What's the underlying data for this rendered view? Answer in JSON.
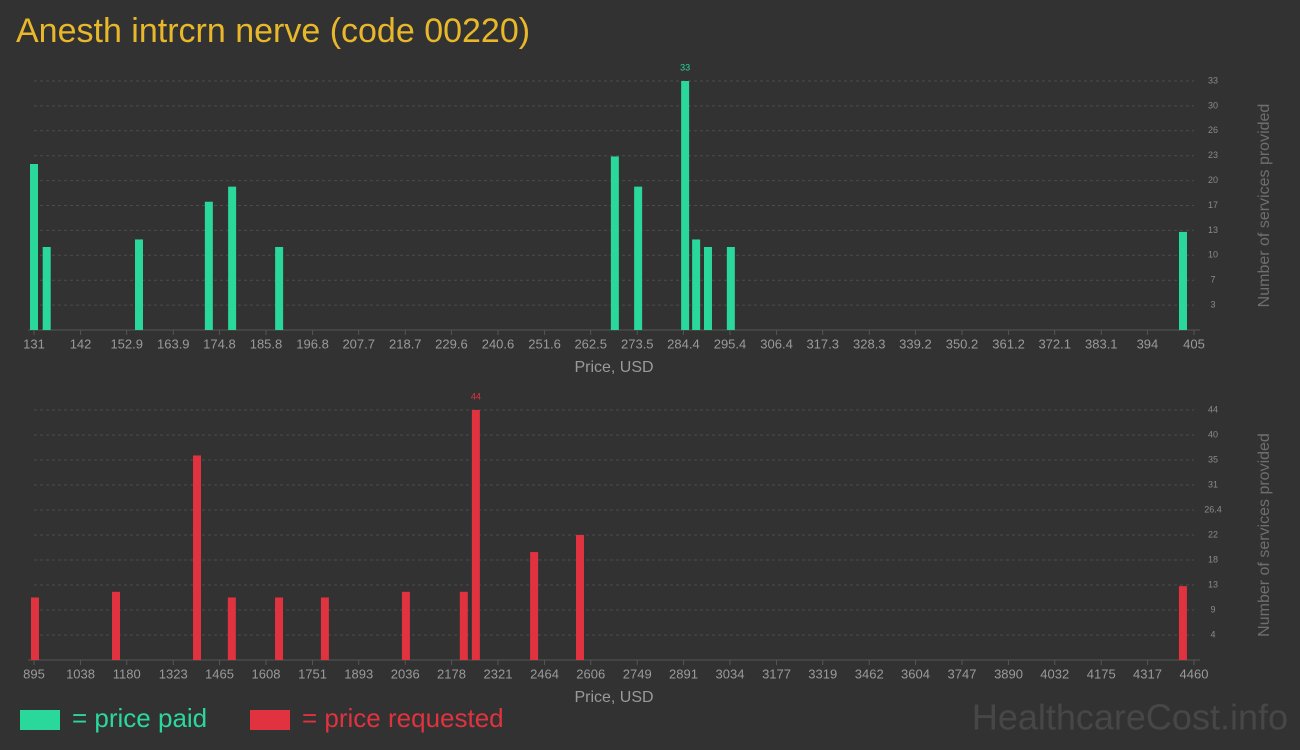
{
  "title": "Anesth intrcrn nerve (code 00220)",
  "watermark": "HealthcareCost.info",
  "chart_data": [
    {
      "type": "bar",
      "xlabel": "Price, USD",
      "ylabel": "Number of services provided",
      "x": [
        131,
        134,
        155.8,
        172.3,
        177.8,
        188.9,
        268.2,
        273.7,
        284.8,
        287.4,
        290.2,
        295.6,
        402.4
      ],
      "series": [
        {
          "name": "= price paid",
          "color": "#2ad89c",
          "values": [
            22,
            11,
            12,
            17,
            19,
            11,
            23,
            19,
            33,
            12,
            11,
            11,
            13
          ]
        }
      ],
      "xlim": [
        131,
        405
      ],
      "xticks": [
        131,
        142,
        152.9,
        163.9,
        174.8,
        185.8,
        196.8,
        207.7,
        218.7,
        229.6,
        240.6,
        251.6,
        262.5,
        273.5,
        284.4,
        295.4,
        306.4,
        317.3,
        328.3,
        339.2,
        350.2,
        361.2,
        372.1,
        383.1,
        394,
        405
      ],
      "ylim": [
        0,
        33
      ],
      "yticks": [
        {
          "value": 3.3,
          "label": "3"
        },
        {
          "value": 6.6,
          "label": "7"
        },
        {
          "value": 9.9,
          "label": "10"
        },
        {
          "value": 13.2,
          "label": "13"
        },
        {
          "value": 16.5,
          "label": "17"
        },
        {
          "value": 19.8,
          "label": "20"
        },
        {
          "value": 23.1,
          "label": "23"
        },
        {
          "value": 26.4,
          "label": "26"
        },
        {
          "value": 29.7,
          "label": "30"
        },
        33
      ],
      "grid": true,
      "label_max": true
    },
    {
      "type": "bar",
      "xlabel": "Price, USD",
      "ylabel": "Number of services provided",
      "x": [
        898,
        1147,
        1396,
        1503,
        1648,
        1789,
        2038,
        2216,
        2253,
        2432,
        2573,
        4426
      ],
      "series": [
        {
          "name": "= price requested",
          "color": "#e0323f",
          "values": [
            11,
            12,
            36,
            11,
            11,
            11,
            12,
            12,
            44,
            19,
            22,
            13
          ]
        }
      ],
      "xlim": [
        895,
        4460
      ],
      "xticks": [
        895,
        1038,
        1180,
        1323,
        1465,
        1608,
        1751,
        1893,
        2036,
        2178,
        2321,
        2464,
        2606,
        2749,
        2891,
        3034,
        3177,
        3319,
        3462,
        3604,
        3747,
        3890,
        4032,
        4175,
        4317,
        4460
      ],
      "ylim": [
        0,
        44
      ],
      "yticks": [
        {
          "value": 4.4,
          "label": "4"
        },
        {
          "value": 8.8,
          "label": "9"
        },
        {
          "value": 13.2,
          "label": "13"
        },
        {
          "value": 17.6,
          "label": "18"
        },
        22,
        26.4,
        {
          "value": 30.8,
          "label": "31"
        },
        {
          "value": 35.2,
          "label": "35"
        },
        {
          "value": 39.6,
          "label": "40"
        },
        44
      ],
      "grid": true,
      "label_max": true
    }
  ]
}
